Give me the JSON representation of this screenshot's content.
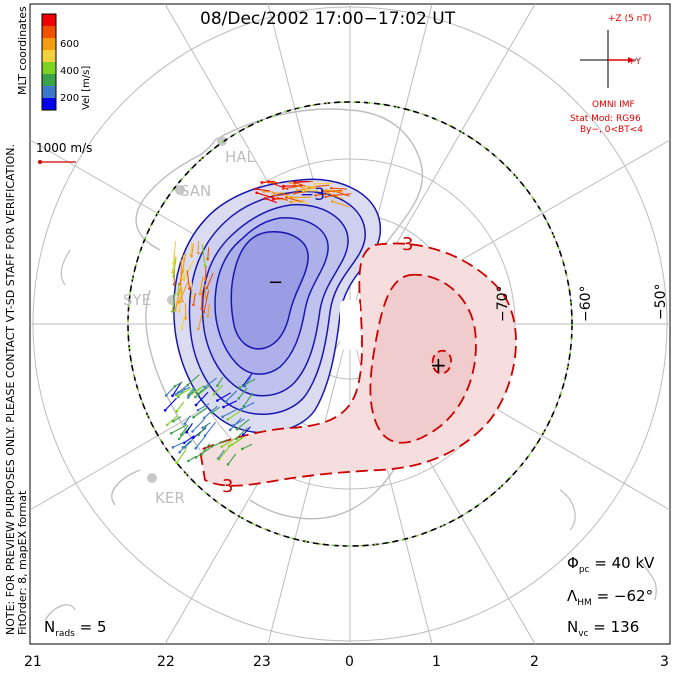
{
  "title": "08/Dec/2002 17:00−17:02 UT",
  "notes": {
    "preview": "NOTE: FOR PREVIEW PURPOSES ONLY. PLEASE CONTACT VT-SD STAFF FOR VERIFICATION.",
    "fitorder": "FitOrder: 8, mapEX format",
    "coords": "MLT coordinates"
  },
  "colorbar": {
    "label": "Vel [m/s]",
    "ticks": [
      "600",
      "400",
      "200"
    ],
    "colors": [
      "#ee0000",
      "#f05000",
      "#f39c12",
      "#f4d03f",
      "#7ed321",
      "#3aa34a",
      "#3c78c8",
      "#0000ee"
    ]
  },
  "scale_vector": {
    "label": "1000 m/s"
  },
  "imf": {
    "z_label": "+Z (5 nT)",
    "y_label": "+Y",
    "source": "OMNI IMF",
    "model": "Stat Mod: RG96",
    "condition": "By−, 0<BT<4"
  },
  "stats": {
    "phi_pc_symbol": "Φ",
    "phi_pc_sub": "pc",
    "phi_pc_value": "= 40 kV",
    "lambda_symbol": "Λ",
    "lambda_sub": "HM",
    "lambda_value": "= −62°",
    "nvc_symbol": "N",
    "nvc_sub": "vc",
    "nvc_value": "= 136",
    "nrads_symbol": "N",
    "nrads_sub": "rads",
    "nrads_value": "= 5"
  },
  "latitude_labels": [
    "−70°",
    "−60°",
    "−50°"
  ],
  "mlt_labels": [
    "21",
    "22",
    "23",
    "0",
    "1",
    "2",
    "3"
  ],
  "stations": [
    "HAL",
    "SAN",
    "SYE",
    "KER"
  ],
  "contour_labels": {
    "negative": "−3",
    "positive": "3",
    "neg_left": "3",
    "neg_extremum": "−",
    "pos_extremum": "+"
  },
  "colors": {
    "negative": "#1818b0",
    "positive": "#cc0000",
    "hmb": "#000000",
    "hmb_dash": "#7ed321",
    "grid": "#bdbdbd",
    "land": "#c8c8c8"
  }
}
